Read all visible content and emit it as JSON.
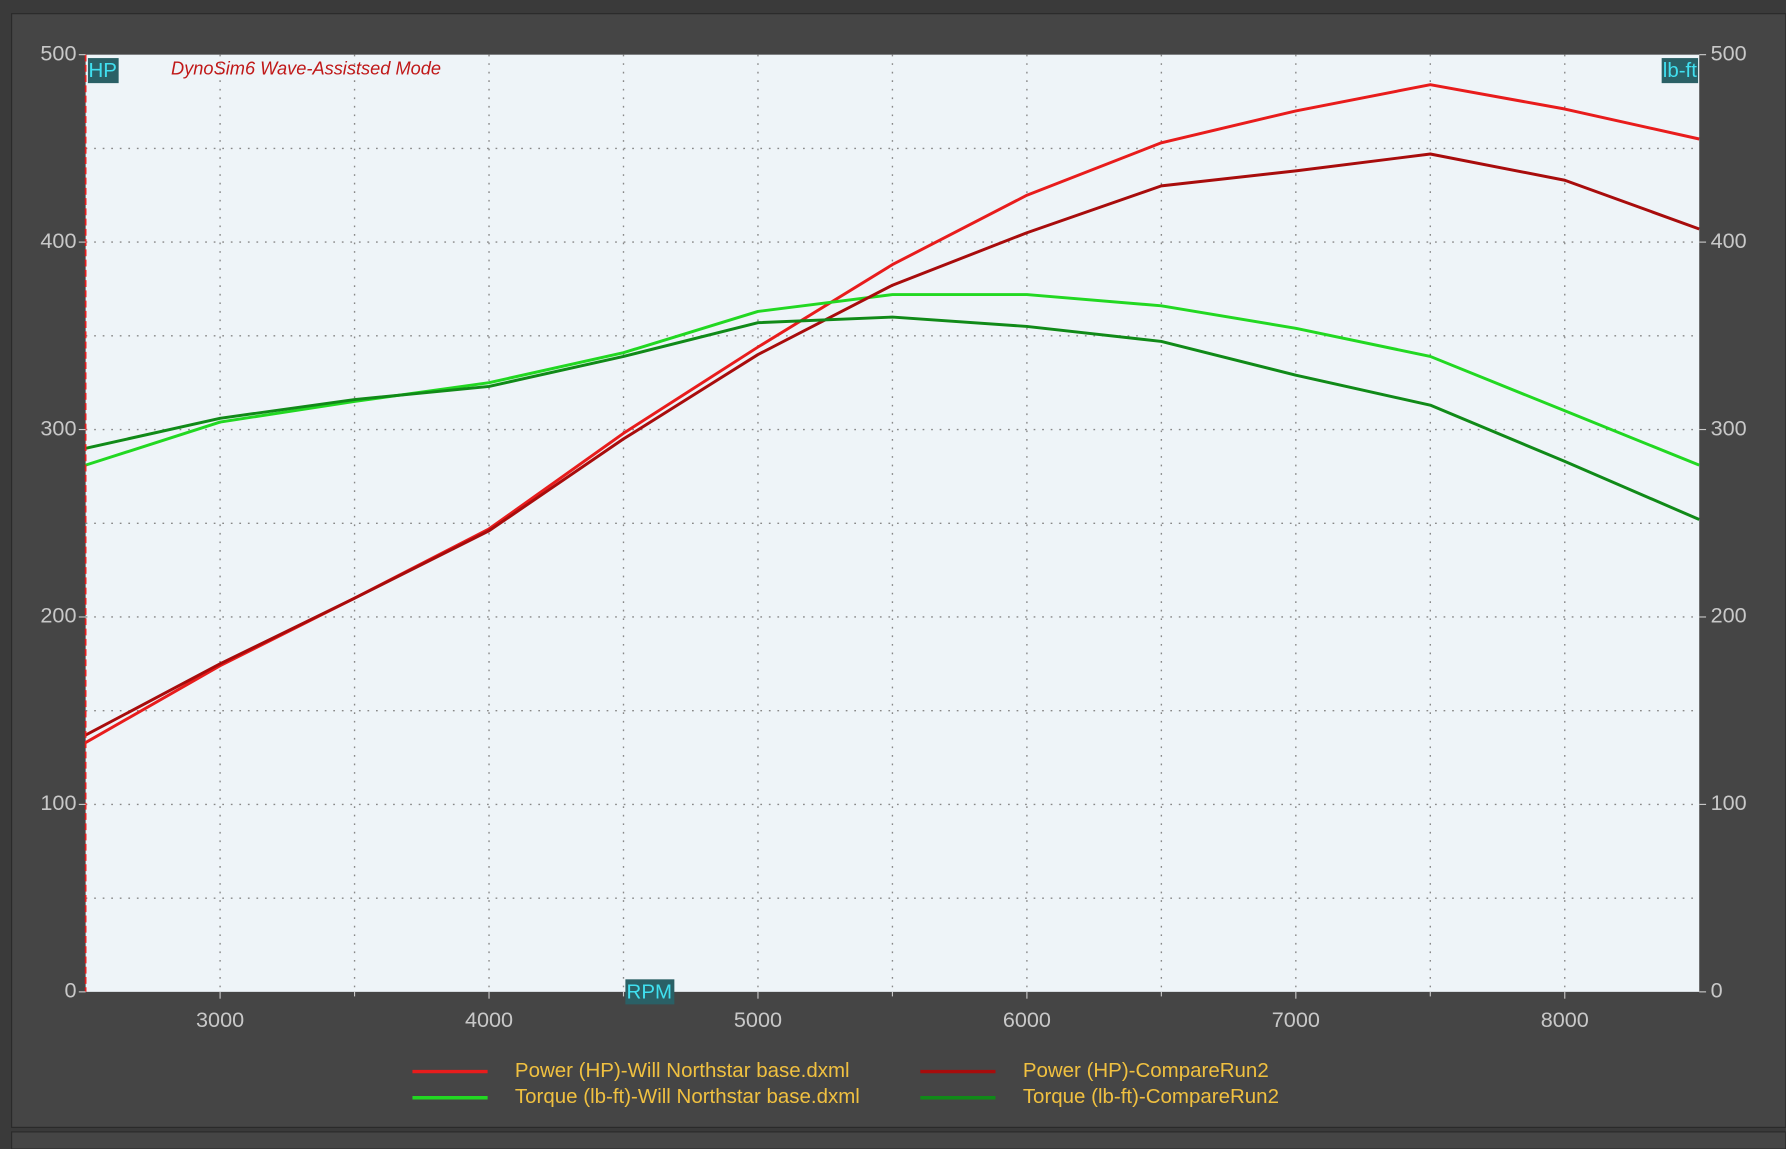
{
  "chart_data": {
    "type": "line",
    "title": "DynoSim6 Wave-Assistsed Mode",
    "x_label": "RPM",
    "y_label": "HP",
    "y2_label": "lb-ft",
    "x": [
      2500,
      3000,
      3500,
      4000,
      4500,
      5000,
      5500,
      6000,
      6500,
      7000,
      7500,
      8000,
      8500
    ],
    "series": [
      {
        "name": "Power (HP)-Will Northstar base.dxml",
        "color": "#e81c1c",
        "values": [
          133,
          174,
          210,
          247,
          298,
          344,
          388,
          425,
          453,
          470,
          484,
          471,
          455
        ]
      },
      {
        "name": "Torque (lb-ft)-Will Northstar base.dxml",
        "color": "#22d822",
        "axis": "y2",
        "values": [
          281,
          304,
          315,
          325,
          341,
          363,
          372,
          372,
          366,
          354,
          339,
          310,
          281
        ]
      },
      {
        "name": "Power (HP)-CompareRun2",
        "color": "#a80c0c",
        "values": [
          137,
          175,
          210,
          246,
          295,
          340,
          377,
          405,
          430,
          438,
          447,
          433,
          407
        ]
      },
      {
        "name": "Torque (lb-ft)-CompareRun2",
        "color": "#108a18",
        "axis": "y2",
        "values": [
          290,
          306,
          316,
          323,
          339,
          357,
          360,
          355,
          347,
          329,
          313,
          283,
          252
        ]
      }
    ],
    "xlim": [
      2500,
      8500
    ],
    "xticks": [
      3000,
      4000,
      5000,
      6000,
      7000,
      8000
    ],
    "xticks_minor": [
      3500,
      4500,
      5500,
      6500,
      7500
    ],
    "ylim": [
      0,
      500
    ],
    "yticks": [
      0,
      100,
      200,
      300,
      400,
      500
    ],
    "yticks_minor": [
      50,
      150,
      250,
      350,
      450
    ],
    "y2lim": [
      0,
      500
    ],
    "y2ticks": [
      0,
      100,
      200,
      300,
      400,
      500
    ],
    "grid": true
  }
}
